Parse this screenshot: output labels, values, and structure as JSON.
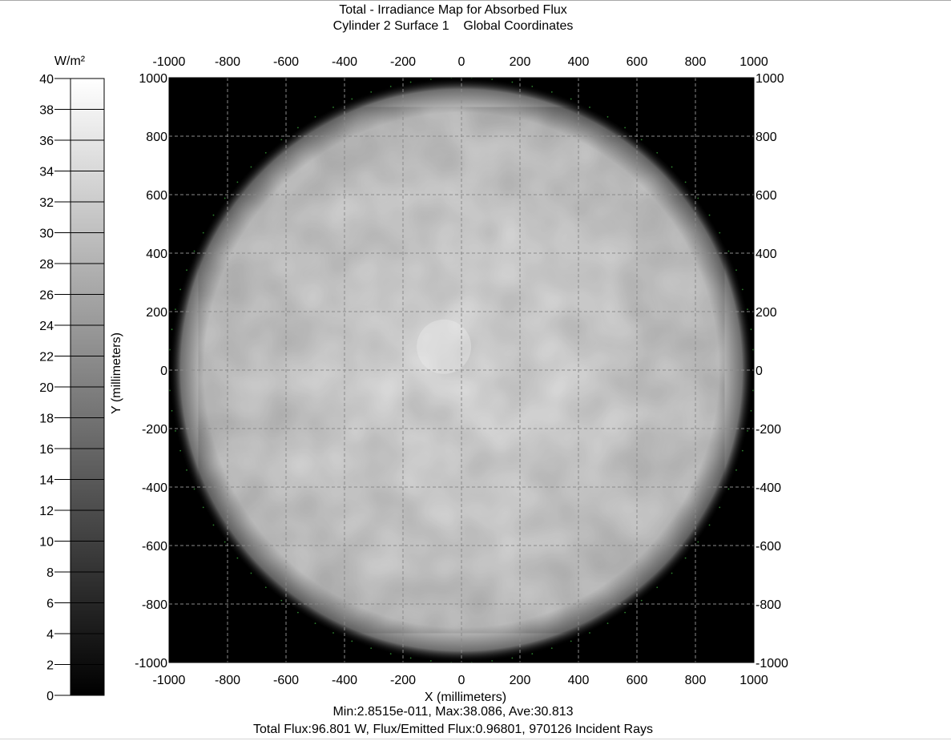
{
  "chart_data": {
    "type": "heatmap",
    "title": "Total - Irradiance Map for Absorbed Flux",
    "subtitle": "Cylinder 2 Surface 1    Global Coordinates",
    "xlabel": "X (millimeters)",
    "ylabel": "Y (millimeters)",
    "xlim": [
      -1000,
      1000
    ],
    "ylim": [
      -1000,
      1000
    ],
    "x_ticks": [
      "-1000",
      "-800",
      "-600",
      "-400",
      "-200",
      "0",
      "200",
      "400",
      "600",
      "800",
      "1000"
    ],
    "y_ticks": [
      "1000",
      "800",
      "600",
      "400",
      "200",
      "0",
      "-200",
      "-400",
      "-600",
      "-800",
      "-1000"
    ],
    "grid": true,
    "colorbar": {
      "label": "W/m²",
      "range": [
        0,
        40
      ],
      "ticks": [
        "40",
        "38",
        "36",
        "34",
        "32",
        "30",
        "28",
        "26",
        "24",
        "22",
        "20",
        "18",
        "16",
        "14",
        "12",
        "10",
        "8",
        "6",
        "4",
        "2",
        "0"
      ],
      "colormap": "grayscale"
    },
    "distribution": {
      "shape": "disk",
      "center": [
        0,
        0
      ],
      "radius_mm": 1000,
      "interior_level_wm2": 33,
      "peak_level_wm2": 38,
      "outside_level_wm2": 0
    },
    "statistics": "Min:2.8515e-011, Max:38.086, Ave:30.813",
    "total_flux": "Total Flux:96.801 W, Flux/Emitted Flux:0.96801, 970126 Incident Rays"
  },
  "colors": {
    "background": "#ffffff",
    "plot_outside": "#000000",
    "grid": "#8a8a8a",
    "axis_text": "#000000",
    "edge_dots": "#3ca83c"
  }
}
